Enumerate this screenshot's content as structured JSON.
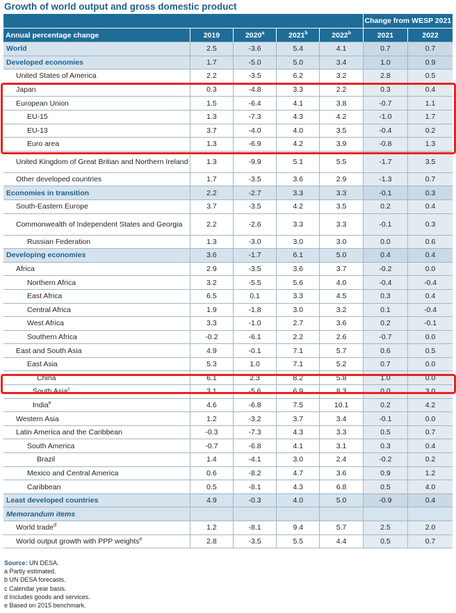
{
  "title": "Growth of world output and gross domestic product",
  "header": {
    "group_label": "Change from WESP 2021",
    "row_label": "Annual percentage change",
    "years": [
      {
        "year": "2019",
        "sup": ""
      },
      {
        "year": "2020",
        "sup": "a"
      },
      {
        "year": "2021",
        "sup": "b"
      },
      {
        "year": "2022",
        "sup": "b"
      }
    ],
    "change_years": [
      "2021",
      "2022"
    ]
  },
  "rows": [
    {
      "label": "World",
      "sup": "",
      "type": "group",
      "indent": 0,
      "values": [
        "2.5",
        "-3.6",
        "5.4",
        "4.1"
      ],
      "change": [
        "0.7",
        "0.7"
      ]
    },
    {
      "label": "Developed economies",
      "sup": "",
      "type": "group",
      "indent": 0,
      "values": [
        "1.7",
        "-5.0",
        "5.0",
        "3.4"
      ],
      "change": [
        "1.0",
        "0.9"
      ]
    },
    {
      "label": "United States of America",
      "sup": "",
      "type": "normal",
      "indent": 1,
      "values": [
        "2.2",
        "-3.5",
        "6.2",
        "3.2"
      ],
      "change": [
        "2.8",
        "0.5"
      ]
    },
    {
      "label": "Japan",
      "sup": "",
      "type": "normal",
      "indent": 1,
      "values": [
        "0.3",
        "-4.8",
        "3.3",
        "2.2"
      ],
      "change": [
        "0.3",
        "0.4"
      ]
    },
    {
      "label": "European Union",
      "sup": "",
      "type": "normal",
      "indent": 1,
      "values": [
        "1.5",
        "-6.4",
        "4.1",
        "3.8"
      ],
      "change": [
        "-0.7",
        "1.1"
      ]
    },
    {
      "label": "EU-15",
      "sup": "",
      "type": "normal",
      "indent": 2,
      "values": [
        "1.3",
        "-7.3",
        "4.3",
        "4.2"
      ],
      "change": [
        "-1.0",
        "1.7"
      ]
    },
    {
      "label": "EU-13",
      "sup": "",
      "type": "normal",
      "indent": 2,
      "values": [
        "3.7",
        "-4.0",
        "4.0",
        "3.5"
      ],
      "change": [
        "-0.4",
        "0.2"
      ]
    },
    {
      "label": "Euro area",
      "sup": "",
      "type": "normal",
      "indent": 2,
      "values": [
        "1.3",
        "-6.9",
        "4.2",
        "3.9"
      ],
      "change": [
        "-0.8",
        "1.3"
      ]
    },
    {
      "label": "United Kingdom of Great Britian and Northern Ireland",
      "sup": "",
      "type": "tall",
      "indent": 1,
      "values": [
        "1.3",
        "-9.9",
        "5.1",
        "5.5"
      ],
      "change": [
        "-1.7",
        "3.5"
      ]
    },
    {
      "label": "Other developed countries",
      "sup": "",
      "type": "normal",
      "indent": 1,
      "values": [
        "1.7",
        "-3.5",
        "3.6",
        "2.9"
      ],
      "change": [
        "-1.3",
        "0.7"
      ]
    },
    {
      "label": "Economies in transition",
      "sup": "",
      "type": "group",
      "indent": 0,
      "values": [
        "2.2",
        "-2.7",
        "3.3",
        "3.3"
      ],
      "change": [
        "-0.1",
        "0.3"
      ]
    },
    {
      "label": "South-Eastern Europe",
      "sup": "",
      "type": "normal",
      "indent": 1,
      "values": [
        "3.7",
        "-3.5",
        "4.2",
        "3.5"
      ],
      "change": [
        "0.2",
        "0.4"
      ]
    },
    {
      "label": "Commonwealth of Independent States and Georgia",
      "sup": "",
      "type": "tall",
      "indent": 1,
      "values": [
        "2.2",
        "-2.6",
        "3.3",
        "3.3"
      ],
      "change": [
        "-0.1",
        "0.3"
      ]
    },
    {
      "label": "Russian Federation",
      "sup": "",
      "type": "normal",
      "indent": 2,
      "values": [
        "1.3",
        "-3.0",
        "3.0",
        "3.0"
      ],
      "change": [
        "0.0",
        "0.6"
      ]
    },
    {
      "label": "Developing economies",
      "sup": "",
      "type": "group",
      "indent": 0,
      "values": [
        "3.6",
        "-1.7",
        "6.1",
        "5.0"
      ],
      "change": [
        "0.4",
        "0.4"
      ]
    },
    {
      "label": "Africa",
      "sup": "",
      "type": "normal",
      "indent": 1,
      "values": [
        "2.9",
        "-3.5",
        "3.6",
        "3.7"
      ],
      "change": [
        "-0.2",
        "0.0"
      ]
    },
    {
      "label": "Northern Africa",
      "sup": "",
      "type": "normal",
      "indent": 2,
      "values": [
        "3.2",
        "-5.5",
        "5.6",
        "4.0"
      ],
      "change": [
        "-0.4",
        "-0.4"
      ]
    },
    {
      "label": "East Africa",
      "sup": "",
      "type": "normal",
      "indent": 2,
      "values": [
        "6.5",
        "0.1",
        "3.3",
        "4.5"
      ],
      "change": [
        "0.3",
        "0.4"
      ]
    },
    {
      "label": "Central Africa",
      "sup": "",
      "type": "normal",
      "indent": 2,
      "values": [
        "1.9",
        "-1.8",
        "3.0",
        "3.2"
      ],
      "change": [
        "0.1",
        "-0.4"
      ]
    },
    {
      "label": "West Africa",
      "sup": "",
      "type": "normal",
      "indent": 2,
      "values": [
        "3.3",
        "-1.0",
        "2.7",
        "3.6"
      ],
      "change": [
        "0.2",
        "-0.1"
      ]
    },
    {
      "label": "Southern Africa",
      "sup": "",
      "type": "normal",
      "indent": 2,
      "values": [
        "-0.2",
        "-6.1",
        "2.2",
        "2.6"
      ],
      "change": [
        "-0.7",
        "0.0"
      ]
    },
    {
      "label": "East and South Asia",
      "sup": "",
      "type": "normal",
      "indent": 1,
      "values": [
        "4.9",
        "-0.1",
        "7.1",
        "5.7"
      ],
      "change": [
        "0.6",
        "0.5"
      ]
    },
    {
      "label": "East Asia",
      "sup": "",
      "type": "normal",
      "indent": 2,
      "values": [
        "5.3",
        "1.0",
        "7.1",
        "5.2"
      ],
      "change": [
        "0.7",
        "0.0"
      ]
    },
    {
      "label": "China",
      "sup": "",
      "type": "normal",
      "indent": 3,
      "values": [
        "6.1",
        "2.3",
        "8.2",
        "5.8"
      ],
      "change": [
        "1.0",
        "0.0"
      ]
    },
    {
      "label": "South Asia",
      "sup": "c",
      "type": "normal",
      "indent": 2,
      "values": [
        "3.1",
        "-5.6",
        "6.9",
        "8.3"
      ],
      "change": [
        "0.0",
        "3.0"
      ]
    },
    {
      "label": "India",
      "sup": "e",
      "type": "normal",
      "indent": 3,
      "values": [
        "4.6",
        "-6.8",
        "7.5",
        "10.1"
      ],
      "change": [
        "0.2",
        "4.2"
      ]
    },
    {
      "label": "Western Asia",
      "sup": "",
      "type": "normal",
      "indent": 1,
      "values": [
        "1.2",
        "-3.2",
        "3.7",
        "3.4"
      ],
      "change": [
        "-0.1",
        "0.0"
      ]
    },
    {
      "label": "Latin America and the Caribbean",
      "sup": "",
      "type": "normal",
      "indent": 1,
      "values": [
        "-0.3",
        "-7.3",
        "4.3",
        "3.3"
      ],
      "change": [
        "0.5",
        "0.7"
      ]
    },
    {
      "label": "South America",
      "sup": "",
      "type": "normal",
      "indent": 2,
      "values": [
        "-0.7",
        "-6.8",
        "4.1",
        "3.1"
      ],
      "change": [
        "0.3",
        "0.4"
      ]
    },
    {
      "label": "Brazil",
      "sup": "",
      "type": "normal",
      "indent": 3,
      "values": [
        "1.4",
        "-4.1",
        "3.0",
        "2.4"
      ],
      "change": [
        "-0.2",
        "0.2"
      ]
    },
    {
      "label": "Mexico and Central America",
      "sup": "",
      "type": "normal",
      "indent": 2,
      "values": [
        "0.6",
        "-8.2",
        "4.7",
        "3.6"
      ],
      "change": [
        "0.9",
        "1.2"
      ]
    },
    {
      "label": "Caribbean",
      "sup": "",
      "type": "normal",
      "indent": 2,
      "values": [
        "0.5",
        "-8.1",
        "4.3",
        "6.8"
      ],
      "change": [
        "0.5",
        "4.0"
      ]
    },
    {
      "label": "Least developed countries",
      "sup": "",
      "type": "group",
      "indent": 0,
      "values": [
        "4.9",
        "-0.3",
        "4.0",
        "5.0"
      ],
      "change": [
        "-0.9",
        "0.4"
      ]
    },
    {
      "label": "Memorandum items",
      "sup": "",
      "type": "memo",
      "indent": 0,
      "values": [
        "",
        "",
        "",
        ""
      ],
      "change": [
        "",
        ""
      ]
    },
    {
      "label": "World trade",
      "sup": "d",
      "type": "normal",
      "indent": 1,
      "values": [
        "1.2",
        "-8.1",
        "9.4",
        "5.7"
      ],
      "change": [
        "2.5",
        "2.0"
      ]
    },
    {
      "label": "World output growth with PPP weights",
      "sup": "e",
      "type": "normal",
      "indent": 1,
      "values": [
        "2.8",
        "-3.5",
        "5.5",
        "4.4"
      ],
      "change": [
        "0.5",
        "0.7"
      ]
    }
  ],
  "footnotes": {
    "source_label": "Source:",
    "source_text": " UN DESA.",
    "notes": [
      {
        "key": "a",
        "text": "Partly estimated."
      },
      {
        "key": "b",
        "text": "UN DESA forecasts."
      },
      {
        "key": "c",
        "text": "Calendar year basis."
      },
      {
        "key": "d",
        "text": "Includes goods and services."
      },
      {
        "key": "e",
        "text": "Based on 2015 benchmark."
      }
    ]
  },
  "highlight_color": "#e8231f"
}
